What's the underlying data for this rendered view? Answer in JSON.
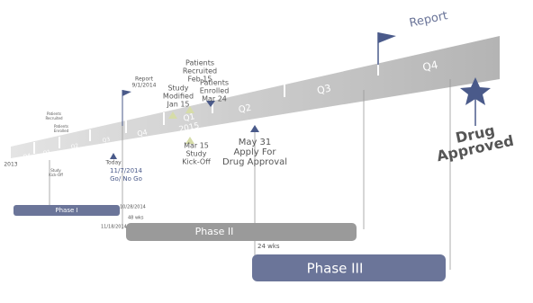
{
  "report": {
    "title": "Report"
  },
  "timeline": {
    "year_start": "2013",
    "quarters_early": [
      "Q4",
      "Q1",
      "Q2",
      "Q3"
    ],
    "quarters": [
      "Q4",
      "Q1",
      "2015",
      "Q2",
      "Q3",
      "Q4"
    ]
  },
  "milestones": [
    {
      "lines": [
        "Report",
        "9/1/2014"
      ]
    },
    {
      "lines": [
        "Patients",
        "Recruited",
        "Feb 15"
      ]
    },
    {
      "lines": [
        "Patients",
        "Enrolled",
        "Mar 24"
      ]
    },
    {
      "lines": [
        "Study",
        "Modified",
        "Jan 15"
      ]
    },
    {
      "lines": [
        "Mar 15",
        "Study",
        "Kick-Off"
      ]
    },
    {
      "lines": [
        "May 31",
        "Apply For",
        "Drug Approval"
      ]
    },
    {
      "lines": [
        "Drug",
        "Approved"
      ]
    },
    {
      "lines": [
        "Today"
      ]
    },
    {
      "lines": [
        "11/7/2014",
        "Go/ No Go"
      ]
    },
    {
      "lines": [
        "Patients",
        "Recruited"
      ]
    },
    {
      "lines": [
        "Patients",
        "Enrolled"
      ]
    },
    {
      "lines": [
        "Study",
        "Kick-Off"
      ]
    }
  ],
  "phases": [
    {
      "name": "Phase I",
      "date": "10/28/2014"
    },
    {
      "name": "Phase II",
      "date": "11/18/2014",
      "duration": "48 wks"
    },
    {
      "name": "Phase III",
      "duration": "24 wks"
    }
  ]
}
